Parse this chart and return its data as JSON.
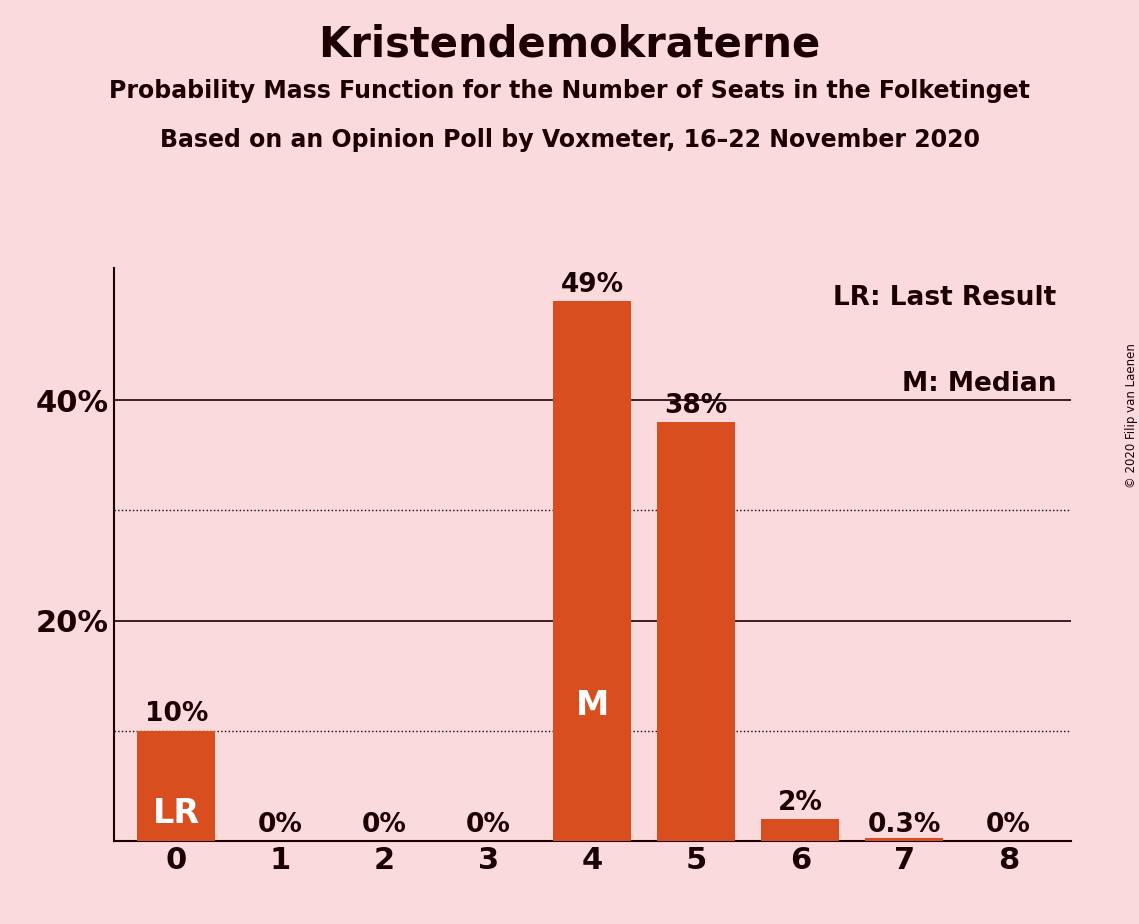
{
  "title": "Kristendemokraterne",
  "subtitle1": "Probability Mass Function for the Number of Seats in the Folketinget",
  "subtitle2": "Based on an Opinion Poll by Voxmeter, 16–22 November 2020",
  "copyright": "© 2020 Filip van Laenen",
  "categories": [
    0,
    1,
    2,
    3,
    4,
    5,
    6,
    7,
    8
  ],
  "values": [
    0.1,
    0.0,
    0.0,
    0.0,
    0.49,
    0.38,
    0.02,
    0.003,
    0.0
  ],
  "bar_color": "#D94E1F",
  "bg_color": "#FADADD",
  "text_color": "#1a0000",
  "label_texts": [
    "10%",
    "0%",
    "0%",
    "0%",
    "49%",
    "38%",
    "2%",
    "0.3%",
    "0%"
  ],
  "bar_labels": [
    "LR",
    "",
    "",
    "",
    "M",
    "",
    "",
    "",
    ""
  ],
  "solid_gridlines": [
    0.2,
    0.4
  ],
  "dotted_gridlines": [
    0.1,
    0.3
  ],
  "ytick_labels": [
    "20%",
    "40%"
  ],
  "ytick_values": [
    0.2,
    0.4
  ],
  "ylim": [
    0,
    0.52
  ],
  "legend_text1": "LR: Last Result",
  "legend_text2": "M: Median",
  "title_fontsize": 30,
  "subtitle_fontsize": 17,
  "label_fontsize": 19,
  "bar_label_fontsize": 24,
  "ytick_fontsize": 22,
  "xtick_fontsize": 22,
  "legend_fontsize": 19
}
